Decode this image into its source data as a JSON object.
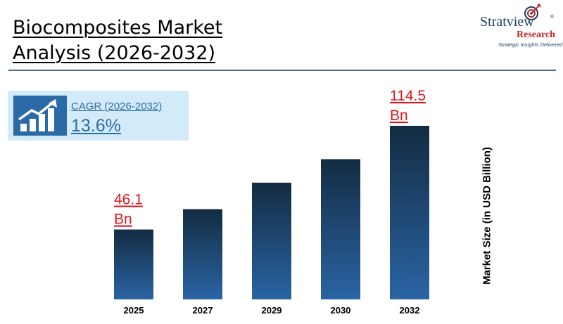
{
  "header": {
    "title": "Biocomposites Market Analysis (2026-2032)"
  },
  "logo": {
    "brand": "Stratview",
    "registered": "®",
    "sub": "Research",
    "tagline": "Strategic Insights Delivered"
  },
  "cagr": {
    "label": "CAGR (2026-2032)",
    "value": "13.6%",
    "icon": "rising-bar-chart-icon"
  },
  "colors": {
    "bar_top": "#132c42",
    "bar_bottom": "#2a64a4",
    "data_label": "#e0161e",
    "accent_blue": "#2c6fa4",
    "cagr_bg": "#d3ebf9"
  },
  "chart_data": {
    "type": "bar",
    "categories": [
      "2025",
      "2027",
      "2029",
      "2030",
      "2032"
    ],
    "values": [
      46.1,
      59.5,
      77.0,
      92.5,
      114.5
    ],
    "data_labels": [
      {
        "index": 0,
        "text": "46.1 Bn"
      },
      {
        "index": 4,
        "text": "114.5 Bn"
      }
    ],
    "xlabel": "",
    "ylabel": "Market Size (in USD Billion)",
    "ylim": [
      0,
      114.5
    ],
    "grid": false,
    "legend": "none"
  }
}
